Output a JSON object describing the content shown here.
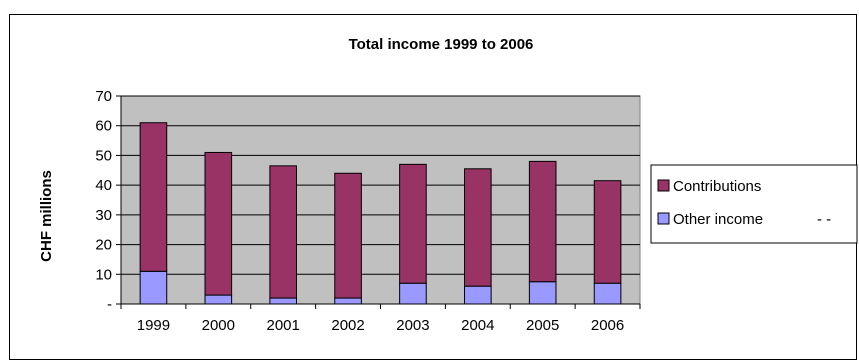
{
  "chart_data": {
    "type": "bar",
    "stacked": true,
    "title": "Total income 1999 to 2006",
    "xlabel": "",
    "ylabel": "CHF millions",
    "categories": [
      "1999",
      "2000",
      "2001",
      "2002",
      "2003",
      "2004",
      "2005",
      "2006"
    ],
    "series": [
      {
        "name": "Other income",
        "values": [
          11,
          3,
          2,
          2,
          7,
          6,
          7.5,
          7
        ],
        "color": "#9999ff"
      },
      {
        "name": "Contributions",
        "values": [
          50,
          48,
          44.5,
          42,
          40,
          39.5,
          40.5,
          34.5
        ],
        "color": "#993366"
      }
    ],
    "ylim": [
      0,
      70
    ],
    "yticks": [
      0,
      10,
      20,
      30,
      40,
      50,
      60,
      70
    ],
    "ytick_labels": [
      "-",
      "10",
      "20",
      "30",
      "40",
      "50",
      "60",
      "70"
    ],
    "grid": true,
    "plot_background": "#c0c0c0",
    "legend": {
      "position": "right",
      "entries": [
        {
          "label": "Contributions",
          "color": "#993366"
        },
        {
          "label": "Other income",
          "color": "#9999ff",
          "suffix": "-   -"
        }
      ]
    }
  }
}
